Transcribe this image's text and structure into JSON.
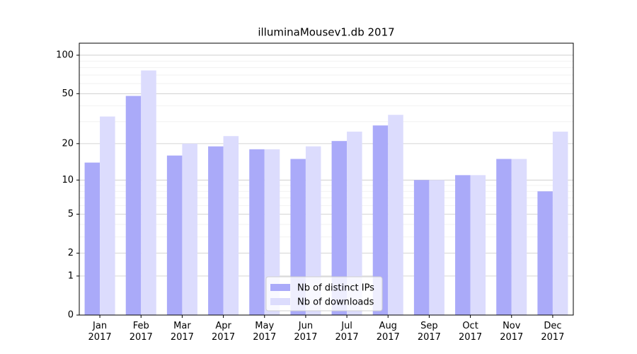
{
  "chart_data": {
    "type": "bar",
    "title": "illuminaMousev1.db 2017",
    "categories": [
      "Jan\n2017",
      "Feb\n2017",
      "Mar\n2017",
      "Apr\n2017",
      "May\n2017",
      "Jun\n2017",
      "Jul\n2017",
      "Aug\n2017",
      "Sep\n2017",
      "Oct\n2017",
      "Nov\n2017",
      "Dec\n2017"
    ],
    "series": [
      {
        "name": "Nb of distinct IPs",
        "color": "#aaaaf9",
        "values": [
          14,
          48,
          16,
          19,
          18,
          15,
          21,
          28,
          10,
          11,
          15,
          8
        ]
      },
      {
        "name": "Nb of downloads",
        "color": "#dcdcfd",
        "values": [
          33,
          76,
          20,
          23,
          18,
          19,
          25,
          34,
          10,
          11,
          15,
          25
        ]
      }
    ],
    "yscale": "log1p",
    "ylim": [
      0,
      124
    ],
    "yticks": [
      0,
      1,
      2,
      5,
      10,
      20,
      50,
      100
    ],
    "minor_yticks": [
      3,
      4,
      6,
      7,
      8,
      9,
      30,
      40,
      60,
      70,
      80,
      90
    ],
    "grid": true,
    "legend": "lower center"
  }
}
